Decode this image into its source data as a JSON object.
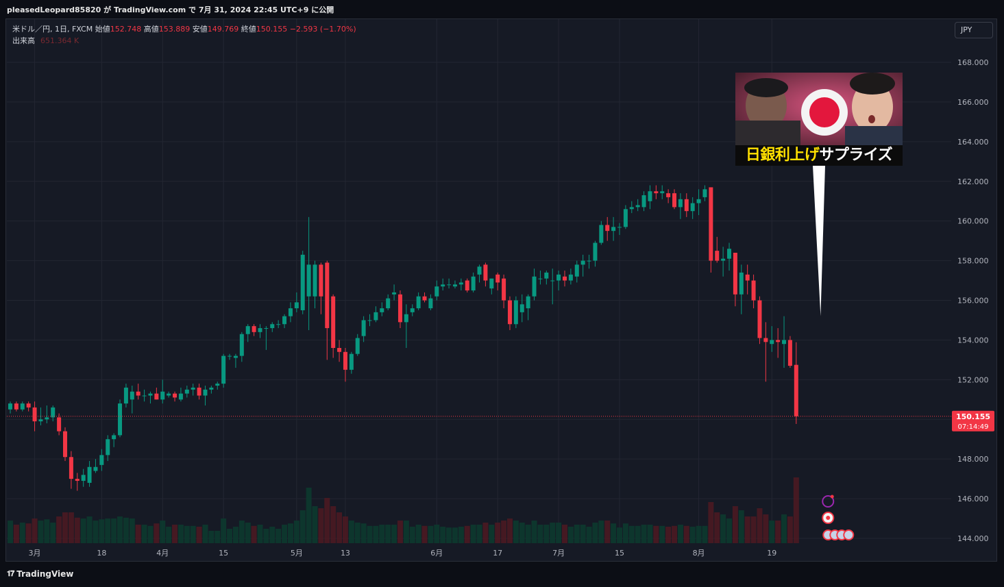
{
  "header": {
    "user": "pleasedLeopard85820",
    "credit_mid": "が TradingView.com で",
    "date": "7月 31, 2024 22:45 UTC+9",
    "credit_end": "に公開"
  },
  "legend": {
    "symbol": "米ドル／円, 1日, FXCM",
    "open_label": "始値",
    "open": "152.748",
    "high_label": "高値",
    "high": "153.889",
    "low_label": "安値",
    "low": "149.769",
    "close_label": "終値",
    "close": "150.155",
    "change": "−2.593 (−1.70%)",
    "volume_label": "出来高",
    "volume": "651.364 K"
  },
  "currency_button": "JPY",
  "price_tag": {
    "price": "150.155",
    "countdown": "07:14:49"
  },
  "thumbnail": {
    "caption_yellow": "日銀利上げ",
    "caption_white": "サプライズ"
  },
  "footer": {
    "brand": "TradingView",
    "brand_icon": "tradingview-logo-icon"
  },
  "colors": {
    "up": "#089981",
    "down": "#f23645",
    "background": "#161a25",
    "grid": "#232632",
    "price_line": "#f23645"
  },
  "chart_data": {
    "type": "candlestick",
    "symbol": "USDJPY",
    "interval": "1D",
    "ylim": [
      143.7,
      169.2
    ],
    "y_ticks": [
      "168.000",
      "166.000",
      "164.000",
      "162.000",
      "160.000",
      "158.000",
      "156.000",
      "154.000",
      "152.000",
      "150.000",
      "148.000",
      "146.000",
      "144.000"
    ],
    "x_ticks": [
      {
        "label": "3月",
        "index": 4
      },
      {
        "label": "18",
        "index": 15
      },
      {
        "label": "4月",
        "index": 25
      },
      {
        "label": "15",
        "index": 35
      },
      {
        "label": "5月",
        "index": 47
      },
      {
        "label": "13",
        "index": 55
      },
      {
        "label": "6月",
        "index": 70
      },
      {
        "label": "17",
        "index": 80
      },
      {
        "label": "7月",
        "index": 90
      },
      {
        "label": "15",
        "index": 100
      },
      {
        "label": "8月",
        "index": 113
      },
      {
        "label": "19",
        "index": 125
      }
    ],
    "candles": [
      {
        "o": 150.5,
        "h": 150.9,
        "l": 150.3,
        "c": 150.8,
        "v": 0.55
      },
      {
        "o": 150.8,
        "h": 150.9,
        "l": 150.4,
        "c": 150.5,
        "v": 0.45
      },
      {
        "o": 150.5,
        "h": 150.9,
        "l": 150.4,
        "c": 150.8,
        "v": 0.5
      },
      {
        "o": 150.8,
        "h": 150.9,
        "l": 150.4,
        "c": 150.6,
        "v": 0.48
      },
      {
        "o": 150.6,
        "h": 150.9,
        "l": 149.4,
        "c": 149.9,
        "v": 0.6
      },
      {
        "o": 149.9,
        "h": 150.6,
        "l": 149.7,
        "c": 150.0,
        "v": 0.55
      },
      {
        "o": 150.0,
        "h": 150.7,
        "l": 149.8,
        "c": 150.1,
        "v": 0.58
      },
      {
        "o": 150.1,
        "h": 150.7,
        "l": 149.9,
        "c": 150.6,
        "v": 0.5
      },
      {
        "o": 150.1,
        "h": 150.3,
        "l": 149.2,
        "c": 149.4,
        "v": 0.65
      },
      {
        "o": 149.4,
        "h": 149.6,
        "l": 147.9,
        "c": 148.1,
        "v": 0.75
      },
      {
        "o": 148.1,
        "h": 148.4,
        "l": 146.5,
        "c": 147.0,
        "v": 0.75
      },
      {
        "o": 147.0,
        "h": 147.3,
        "l": 146.4,
        "c": 146.9,
        "v": 0.62
      },
      {
        "o": 146.9,
        "h": 147.5,
        "l": 146.6,
        "c": 147.2,
        "v": 0.6
      },
      {
        "o": 146.8,
        "h": 147.9,
        "l": 146.6,
        "c": 147.6,
        "v": 0.65
      },
      {
        "o": 147.4,
        "h": 148.0,
        "l": 147.3,
        "c": 147.6,
        "v": 0.55
      },
      {
        "o": 147.7,
        "h": 148.5,
        "l": 147.4,
        "c": 148.2,
        "v": 0.58
      },
      {
        "o": 148.2,
        "h": 149.2,
        "l": 147.9,
        "c": 149.0,
        "v": 0.6
      },
      {
        "o": 149.0,
        "h": 149.3,
        "l": 148.6,
        "c": 149.2,
        "v": 0.6
      },
      {
        "o": 149.2,
        "h": 151.0,
        "l": 149.1,
        "c": 150.8,
        "v": 0.65
      },
      {
        "o": 150.8,
        "h": 151.8,
        "l": 150.6,
        "c": 151.6,
        "v": 0.62
      },
      {
        "o": 151.0,
        "h": 151.7,
        "l": 150.3,
        "c": 151.4,
        "v": 0.6
      },
      {
        "o": 151.4,
        "h": 151.8,
        "l": 151.0,
        "c": 151.2,
        "v": 0.45
      },
      {
        "o": 151.2,
        "h": 151.5,
        "l": 150.9,
        "c": 151.2,
        "v": 0.45
      },
      {
        "o": 151.2,
        "h": 151.4,
        "l": 150.8,
        "c": 151.3,
        "v": 0.42
      },
      {
        "o": 151.3,
        "h": 151.6,
        "l": 151.0,
        "c": 151.0,
        "v": 0.48
      },
      {
        "o": 151.0,
        "h": 152.0,
        "l": 150.8,
        "c": 151.4,
        "v": 0.55
      },
      {
        "o": 151.2,
        "h": 151.4,
        "l": 151.1,
        "c": 151.3,
        "v": 0.4
      },
      {
        "o": 151.3,
        "h": 151.4,
        "l": 150.9,
        "c": 151.1,
        "v": 0.45
      },
      {
        "o": 151.0,
        "h": 151.6,
        "l": 150.9,
        "c": 151.3,
        "v": 0.45
      },
      {
        "o": 151.3,
        "h": 151.7,
        "l": 151.1,
        "c": 151.5,
        "v": 0.42
      },
      {
        "o": 151.5,
        "h": 151.8,
        "l": 151.2,
        "c": 151.6,
        "v": 0.42
      },
      {
        "o": 151.6,
        "h": 151.8,
        "l": 151.0,
        "c": 151.2,
        "v": 0.4
      },
      {
        "o": 151.2,
        "h": 151.7,
        "l": 150.7,
        "c": 151.5,
        "v": 0.45
      },
      {
        "o": 151.5,
        "h": 151.7,
        "l": 151.3,
        "c": 151.6,
        "v": 0.3
      },
      {
        "o": 151.7,
        "h": 151.9,
        "l": 151.5,
        "c": 151.8,
        "v": 0.3
      },
      {
        "o": 151.8,
        "h": 153.3,
        "l": 151.6,
        "c": 153.2,
        "v": 0.6
      },
      {
        "o": 153.2,
        "h": 153.3,
        "l": 153.0,
        "c": 153.2,
        "v": 0.35
      },
      {
        "o": 153.1,
        "h": 153.3,
        "l": 152.6,
        "c": 153.2,
        "v": 0.4
      },
      {
        "o": 153.2,
        "h": 154.4,
        "l": 152.9,
        "c": 154.3,
        "v": 0.55
      },
      {
        "o": 154.3,
        "h": 154.8,
        "l": 153.9,
        "c": 154.7,
        "v": 0.5
      },
      {
        "o": 154.7,
        "h": 154.8,
        "l": 154.2,
        "c": 154.4,
        "v": 0.42
      },
      {
        "o": 154.4,
        "h": 154.8,
        "l": 154.1,
        "c": 154.6,
        "v": 0.45
      },
      {
        "o": 154.6,
        "h": 154.7,
        "l": 153.5,
        "c": 154.6,
        "v": 0.35
      },
      {
        "o": 154.6,
        "h": 154.9,
        "l": 154.4,
        "c": 154.8,
        "v": 0.4
      },
      {
        "o": 154.8,
        "h": 155.0,
        "l": 154.6,
        "c": 154.8,
        "v": 0.35
      },
      {
        "o": 154.8,
        "h": 155.3,
        "l": 154.6,
        "c": 155.2,
        "v": 0.45
      },
      {
        "o": 155.2,
        "h": 155.9,
        "l": 154.9,
        "c": 155.6,
        "v": 0.48
      },
      {
        "o": 155.6,
        "h": 156.4,
        "l": 155.4,
        "c": 155.9,
        "v": 0.55
      },
      {
        "o": 155.5,
        "h": 158.5,
        "l": 155.3,
        "c": 158.3,
        "v": 0.8
      },
      {
        "o": 156.2,
        "h": 160.2,
        "l": 154.5,
        "c": 157.8,
        "v": 1.35
      },
      {
        "o": 156.2,
        "h": 158.0,
        "l": 155.6,
        "c": 157.8,
        "v": 0.9
      },
      {
        "o": 157.8,
        "h": 157.9,
        "l": 155.3,
        "c": 156.2,
        "v": 0.85
      },
      {
        "o": 157.9,
        "h": 158.0,
        "l": 153.0,
        "c": 154.6,
        "v": 1.1
      },
      {
        "o": 156.2,
        "h": 156.3,
        "l": 153.1,
        "c": 153.6,
        "v": 0.9
      },
      {
        "o": 153.6,
        "h": 154.0,
        "l": 152.9,
        "c": 153.4,
        "v": 0.75
      },
      {
        "o": 153.4,
        "h": 153.6,
        "l": 151.9,
        "c": 152.5,
        "v": 0.65
      },
      {
        "o": 152.5,
        "h": 153.4,
        "l": 152.3,
        "c": 153.3,
        "v": 0.55
      },
      {
        "o": 153.3,
        "h": 154.3,
        "l": 153.2,
        "c": 154.1,
        "v": 0.5
      },
      {
        "o": 154.2,
        "h": 155.2,
        "l": 153.9,
        "c": 155.0,
        "v": 0.48
      },
      {
        "o": 155.0,
        "h": 155.3,
        "l": 154.7,
        "c": 155.0,
        "v": 0.42
      },
      {
        "o": 155.0,
        "h": 155.7,
        "l": 154.9,
        "c": 155.4,
        "v": 0.42
      },
      {
        "o": 155.4,
        "h": 155.9,
        "l": 155.2,
        "c": 155.6,
        "v": 0.45
      },
      {
        "o": 155.6,
        "h": 156.3,
        "l": 155.5,
        "c": 156.1,
        "v": 0.45
      },
      {
        "o": 156.3,
        "h": 156.8,
        "l": 156.0,
        "c": 156.4,
        "v": 0.45
      },
      {
        "o": 156.3,
        "h": 156.5,
        "l": 154.6,
        "c": 154.9,
        "v": 0.55
      },
      {
        "o": 154.9,
        "h": 155.8,
        "l": 153.6,
        "c": 155.3,
        "v": 0.55
      },
      {
        "o": 155.4,
        "h": 155.8,
        "l": 155.2,
        "c": 155.6,
        "v": 0.4
      },
      {
        "o": 155.6,
        "h": 156.4,
        "l": 155.5,
        "c": 156.2,
        "v": 0.45
      },
      {
        "o": 156.2,
        "h": 156.4,
        "l": 155.9,
        "c": 156.0,
        "v": 0.42
      },
      {
        "o": 155.6,
        "h": 156.3,
        "l": 155.5,
        "c": 156.1,
        "v": 0.42
      },
      {
        "o": 156.2,
        "h": 157.0,
        "l": 156.0,
        "c": 156.7,
        "v": 0.45
      },
      {
        "o": 156.7,
        "h": 157.1,
        "l": 156.5,
        "c": 156.8,
        "v": 0.4
      },
      {
        "o": 156.8,
        "h": 157.1,
        "l": 156.6,
        "c": 156.8,
        "v": 0.38
      },
      {
        "o": 156.7,
        "h": 157.0,
        "l": 156.6,
        "c": 156.8,
        "v": 0.38
      },
      {
        "o": 156.8,
        "h": 157.1,
        "l": 156.5,
        "c": 156.9,
        "v": 0.4
      },
      {
        "o": 157.0,
        "h": 157.1,
        "l": 156.4,
        "c": 156.5,
        "v": 0.42
      },
      {
        "o": 156.5,
        "h": 157.4,
        "l": 156.4,
        "c": 157.2,
        "v": 0.45
      },
      {
        "o": 157.3,
        "h": 157.8,
        "l": 156.9,
        "c": 157.7,
        "v": 0.45
      },
      {
        "o": 157.8,
        "h": 157.9,
        "l": 156.7,
        "c": 157.0,
        "v": 0.5
      },
      {
        "o": 156.6,
        "h": 157.1,
        "l": 156.3,
        "c": 157.1,
        "v": 0.45
      },
      {
        "o": 157.3,
        "h": 157.4,
        "l": 156.5,
        "c": 156.9,
        "v": 0.5
      },
      {
        "o": 157.1,
        "h": 157.3,
        "l": 155.6,
        "c": 156.0,
        "v": 0.55
      },
      {
        "o": 156.0,
        "h": 156.2,
        "l": 154.5,
        "c": 154.8,
        "v": 0.6
      },
      {
        "o": 154.8,
        "h": 156.2,
        "l": 154.6,
        "c": 156.0,
        "v": 0.55
      },
      {
        "o": 155.4,
        "h": 156.3,
        "l": 154.9,
        "c": 155.8,
        "v": 0.5
      },
      {
        "o": 155.6,
        "h": 156.3,
        "l": 155.0,
        "c": 156.2,
        "v": 0.45
      },
      {
        "o": 156.2,
        "h": 157.6,
        "l": 156.0,
        "c": 157.2,
        "v": 0.55
      },
      {
        "o": 157.1,
        "h": 157.5,
        "l": 156.8,
        "c": 157.1,
        "v": 0.45
      },
      {
        "o": 157.1,
        "h": 157.5,
        "l": 156.8,
        "c": 157.4,
        "v": 0.45
      },
      {
        "o": 157.0,
        "h": 157.6,
        "l": 155.8,
        "c": 157.0,
        "v": 0.5
      },
      {
        "o": 157.0,
        "h": 157.5,
        "l": 156.5,
        "c": 157.3,
        "v": 0.5
      },
      {
        "o": 157.2,
        "h": 157.5,
        "l": 156.7,
        "c": 157.0,
        "v": 0.45
      },
      {
        "o": 157.0,
        "h": 157.6,
        "l": 156.8,
        "c": 157.3,
        "v": 0.4
      },
      {
        "o": 157.2,
        "h": 158.0,
        "l": 156.9,
        "c": 157.8,
        "v": 0.45
      },
      {
        "o": 157.8,
        "h": 158.3,
        "l": 157.2,
        "c": 158.0,
        "v": 0.45
      },
      {
        "o": 158.0,
        "h": 158.3,
        "l": 157.6,
        "c": 158.0,
        "v": 0.4
      },
      {
        "o": 158.0,
        "h": 159.0,
        "l": 157.7,
        "c": 158.9,
        "v": 0.5
      },
      {
        "o": 158.9,
        "h": 160.0,
        "l": 158.8,
        "c": 159.8,
        "v": 0.55
      },
      {
        "o": 159.8,
        "h": 160.2,
        "l": 159.0,
        "c": 159.5,
        "v": 0.55
      },
      {
        "o": 159.5,
        "h": 160.2,
        "l": 159.0,
        "c": 159.7,
        "v": 0.48
      },
      {
        "o": 159.7,
        "h": 159.9,
        "l": 159.3,
        "c": 159.7,
        "v": 0.38
      },
      {
        "o": 159.7,
        "h": 160.8,
        "l": 159.6,
        "c": 160.6,
        "v": 0.48
      },
      {
        "o": 160.6,
        "h": 161.0,
        "l": 160.4,
        "c": 160.7,
        "v": 0.42
      },
      {
        "o": 160.7,
        "h": 161.1,
        "l": 160.5,
        "c": 160.8,
        "v": 0.42
      },
      {
        "o": 160.7,
        "h": 161.5,
        "l": 160.5,
        "c": 161.3,
        "v": 0.45
      },
      {
        "o": 161.0,
        "h": 161.8,
        "l": 160.6,
        "c": 161.5,
        "v": 0.45
      },
      {
        "o": 161.5,
        "h": 161.8,
        "l": 161.1,
        "c": 161.4,
        "v": 0.42
      },
      {
        "o": 161.4,
        "h": 161.8,
        "l": 161.1,
        "c": 161.5,
        "v": 0.42
      },
      {
        "o": 161.4,
        "h": 161.6,
        "l": 160.9,
        "c": 161.2,
        "v": 0.4
      },
      {
        "o": 161.4,
        "h": 161.6,
        "l": 160.6,
        "c": 160.7,
        "v": 0.42
      },
      {
        "o": 160.7,
        "h": 161.4,
        "l": 160.1,
        "c": 161.1,
        "v": 0.45
      },
      {
        "o": 161.1,
        "h": 161.4,
        "l": 160.2,
        "c": 160.5,
        "v": 0.42
      },
      {
        "o": 160.5,
        "h": 161.2,
        "l": 160.1,
        "c": 160.9,
        "v": 0.4
      },
      {
        "o": 160.9,
        "h": 161.6,
        "l": 160.3,
        "c": 161.1,
        "v": 0.42
      },
      {
        "o": 161.2,
        "h": 161.8,
        "l": 161.0,
        "c": 161.6,
        "v": 0.42
      },
      {
        "o": 161.7,
        "h": 161.7,
        "l": 157.4,
        "c": 158.0,
        "v": 1.0
      },
      {
        "o": 158.5,
        "h": 159.2,
        "l": 157.9,
        "c": 158.0,
        "v": 0.75
      },
      {
        "o": 158.0,
        "h": 158.7,
        "l": 157.2,
        "c": 158.1,
        "v": 0.7
      },
      {
        "o": 158.1,
        "h": 158.9,
        "l": 157.5,
        "c": 158.6,
        "v": 0.6
      },
      {
        "o": 158.4,
        "h": 158.4,
        "l": 155.7,
        "c": 156.3,
        "v": 0.9
      },
      {
        "o": 156.3,
        "h": 157.8,
        "l": 155.3,
        "c": 157.4,
        "v": 0.8
      },
      {
        "o": 157.3,
        "h": 157.8,
        "l": 156.3,
        "c": 157.0,
        "v": 0.65
      },
      {
        "o": 157.0,
        "h": 157.3,
        "l": 155.6,
        "c": 156.0,
        "v": 0.65
      },
      {
        "o": 156.0,
        "h": 156.2,
        "l": 153.8,
        "c": 154.1,
        "v": 0.85
      },
      {
        "o": 154.1,
        "h": 154.9,
        "l": 151.9,
        "c": 153.9,
        "v": 0.7
      },
      {
        "o": 153.8,
        "h": 154.7,
        "l": 153.4,
        "c": 154.0,
        "v": 0.55
      },
      {
        "o": 154.0,
        "h": 154.6,
        "l": 153.1,
        "c": 153.9,
        "v": 0.55
      },
      {
        "o": 153.8,
        "h": 155.2,
        "l": 152.6,
        "c": 154.0,
        "v": 0.7
      },
      {
        "o": 154.0,
        "h": 154.2,
        "l": 152.6,
        "c": 152.7,
        "v": 0.65
      },
      {
        "o": 152.748,
        "h": 153.889,
        "l": 149.769,
        "c": 150.155,
        "v": 1.6
      }
    ]
  }
}
